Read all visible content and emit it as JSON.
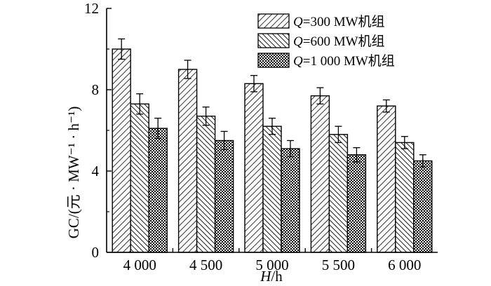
{
  "chart_data": {
    "type": "bar",
    "categories": [
      "4 000",
      "4 500",
      "5 000",
      "5 500",
      "6 000"
    ],
    "series": [
      {
        "name": "Q=300 MW机组",
        "name_var": "Q",
        "name_rest": "=300 MW机组",
        "values": [
          10.0,
          9.0,
          8.3,
          7.7,
          7.2
        ],
        "errors": [
          0.5,
          0.45,
          0.4,
          0.4,
          0.3
        ],
        "pattern": "hatch-fwd"
      },
      {
        "name": "Q=600 MW机组",
        "name_var": "Q",
        "name_rest": "=600 MW机组",
        "values": [
          7.3,
          6.7,
          6.2,
          5.8,
          5.4
        ],
        "errors": [
          0.5,
          0.45,
          0.4,
          0.4,
          0.3
        ],
        "pattern": "hatch-back"
      },
      {
        "name": "Q=1 000 MW机组",
        "name_var": "Q",
        "name_rest": "=1 000 MW机组",
        "values": [
          6.1,
          5.5,
          5.1,
          4.8,
          4.5
        ],
        "errors": [
          0.5,
          0.45,
          0.4,
          0.35,
          0.3
        ],
        "pattern": "crosshatch"
      }
    ],
    "xlabel": "H/h",
    "xlabel_var": "H",
    "xlabel_rest": "/h",
    "ylabel": "GC/(元 · MW⁻¹ · h⁻¹)",
    "ylim": [
      0,
      12
    ],
    "yticks": [
      0,
      4,
      8,
      12
    ],
    "ytick_labels": [
      "0",
      "4",
      "8",
      "12"
    ],
    "grid": false,
    "legend_position": "top-right"
  }
}
